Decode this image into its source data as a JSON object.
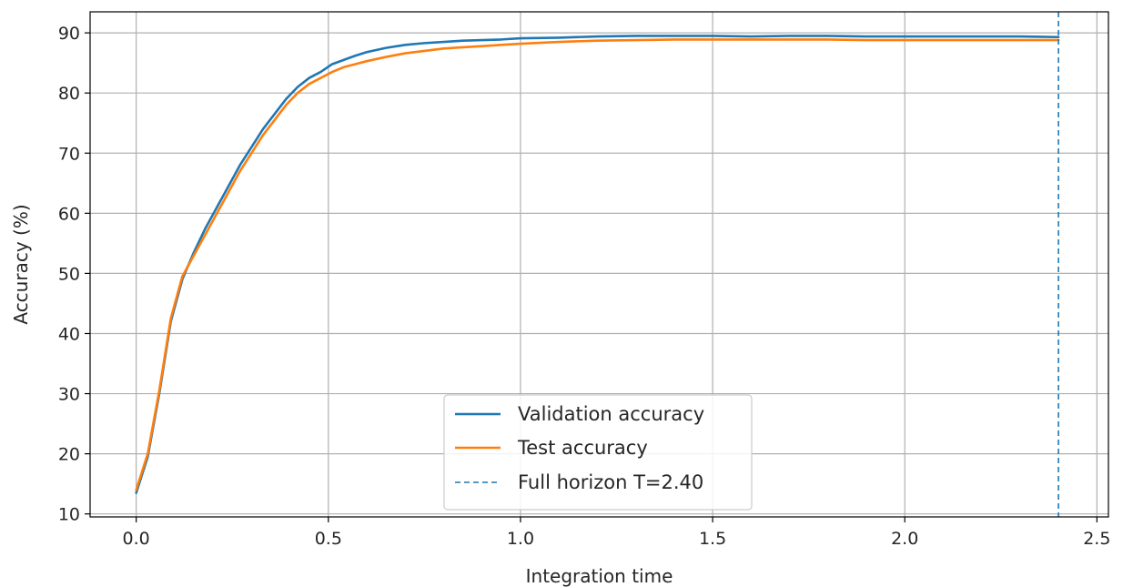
{
  "chart_data": {
    "type": "line",
    "title": "",
    "xlabel": "Integration time",
    "ylabel": "Accuracy (%)",
    "xlim": [
      -0.12,
      2.53
    ],
    "ylim": [
      9.5,
      93.5
    ],
    "xticks": [
      0.0,
      0.5,
      1.0,
      1.5,
      2.0,
      2.5
    ],
    "xtick_labels": [
      "0.0",
      "0.5",
      "1.0",
      "1.5",
      "2.0",
      "2.5"
    ],
    "yticks": [
      10,
      20,
      30,
      40,
      50,
      60,
      70,
      80,
      90
    ],
    "ytick_labels": [
      "10",
      "20",
      "30",
      "40",
      "50",
      "60",
      "70",
      "80",
      "90"
    ],
    "grid": true,
    "legend_position": "lower-center",
    "series": [
      {
        "name": "Validation accuracy",
        "color": "#1f77b4",
        "style": "solid",
        "x": [
          0.0,
          0.03,
          0.06,
          0.09,
          0.12,
          0.15,
          0.18,
          0.21,
          0.24,
          0.27,
          0.3,
          0.33,
          0.36,
          0.39,
          0.42,
          0.45,
          0.48,
          0.51,
          0.54,
          0.57,
          0.6,
          0.65,
          0.7,
          0.75,
          0.8,
          0.85,
          0.9,
          0.95,
          1.0,
          1.1,
          1.2,
          1.3,
          1.4,
          1.5,
          1.6,
          1.7,
          1.8,
          1.9,
          2.0,
          2.1,
          2.2,
          2.3,
          2.4
        ],
        "y": [
          13.5,
          19.5,
          30.0,
          42.0,
          49.0,
          53.5,
          57.5,
          61.0,
          64.5,
          68.0,
          71.0,
          74.0,
          76.5,
          79.0,
          81.0,
          82.5,
          83.5,
          84.8,
          85.5,
          86.2,
          86.8,
          87.5,
          88.0,
          88.3,
          88.5,
          88.7,
          88.8,
          88.9,
          89.1,
          89.2,
          89.4,
          89.5,
          89.5,
          89.5,
          89.4,
          89.5,
          89.5,
          89.4,
          89.4,
          89.4,
          89.4,
          89.4,
          89.3
        ]
      },
      {
        "name": "Test accuracy",
        "color": "#ff7f0e",
        "style": "solid",
        "x": [
          0.0,
          0.03,
          0.06,
          0.09,
          0.12,
          0.15,
          0.18,
          0.21,
          0.24,
          0.27,
          0.3,
          0.33,
          0.36,
          0.39,
          0.42,
          0.45,
          0.48,
          0.51,
          0.54,
          0.57,
          0.6,
          0.65,
          0.7,
          0.75,
          0.8,
          0.85,
          0.9,
          0.95,
          1.0,
          1.1,
          1.2,
          1.3,
          1.4,
          1.5,
          1.6,
          1.7,
          1.8,
          1.9,
          2.0,
          2.1,
          2.2,
          2.3,
          2.4
        ],
        "y": [
          14.0,
          20.0,
          30.5,
          42.5,
          49.5,
          53.0,
          56.5,
          60.0,
          63.5,
          67.0,
          70.0,
          73.0,
          75.5,
          78.0,
          80.0,
          81.5,
          82.5,
          83.5,
          84.3,
          84.8,
          85.3,
          86.0,
          86.6,
          87.0,
          87.4,
          87.6,
          87.8,
          88.0,
          88.2,
          88.5,
          88.7,
          88.8,
          88.9,
          88.9,
          88.9,
          88.9,
          88.9,
          88.8,
          88.8,
          88.8,
          88.8,
          88.8,
          88.8
        ]
      }
    ],
    "annotations": [
      {
        "type": "vline",
        "name": "Full horizon T=2.40",
        "x": 2.4,
        "color": "#1f77b4",
        "style": "dashed"
      }
    ]
  }
}
